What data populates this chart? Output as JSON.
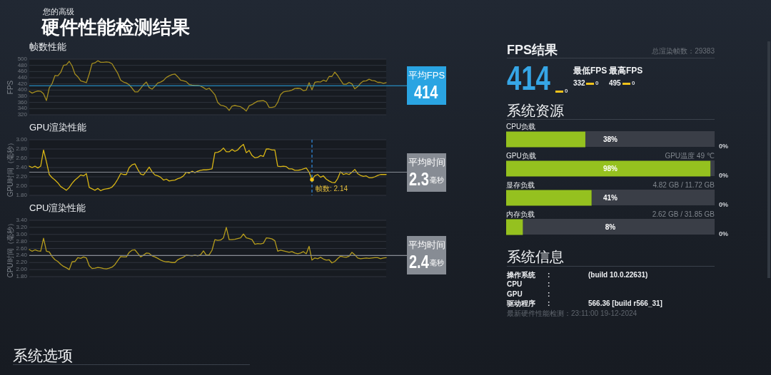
{
  "chart_data": [
    {
      "type": "other",
      "title": "硬件性能检测结果",
      "subtitle": "您的高级"
    },
    {
      "type": "line",
      "title": "帧数性能",
      "ylabel": "FPS",
      "color": "#a38c1f",
      "grid": "y",
      "ylim": [
        320,
        500
      ],
      "yticks": [
        320,
        340,
        360,
        380,
        400,
        420,
        440,
        460,
        480,
        500
      ],
      "categories": [
        null,
        null,
        null,
        null,
        null,
        null,
        null,
        null,
        null,
        null,
        null,
        null,
        null,
        null,
        null,
        null,
        null,
        null,
        null,
        null,
        null,
        null,
        null,
        null,
        null,
        null,
        null,
        null,
        null,
        null,
        null,
        null,
        null,
        null,
        null,
        null,
        null,
        null,
        null,
        null,
        null,
        null,
        null,
        null,
        null,
        null,
        null,
        null,
        null,
        null,
        null,
        null,
        null,
        null,
        null,
        null,
        null,
        null,
        null,
        null,
        null,
        null,
        null,
        null,
        null,
        null,
        null,
        null,
        null,
        null,
        null,
        null,
        null,
        null,
        null,
        null,
        null,
        null,
        null,
        null,
        null,
        null,
        null,
        null,
        null,
        null,
        null,
        null,
        null,
        null,
        null,
        null,
        null,
        null,
        null,
        null,
        null,
        null,
        null,
        null,
        null,
        null,
        null,
        null,
        null,
        null,
        null,
        null,
        null,
        null,
        null,
        null,
        null,
        null,
        null,
        null,
        null,
        null,
        null,
        null,
        null,
        null,
        null,
        null,
        null,
        null
      ],
      "values": [
        396,
        390,
        394,
        397,
        396,
        388,
        366,
        407,
        421,
        447,
        446,
        457,
        480,
        482,
        493,
        478,
        452,
        443,
        430,
        427,
        424,
        452,
        486,
        488,
        495,
        490,
        490,
        491,
        490,
        485,
        469,
        454,
        432,
        426,
        423,
        417,
        406,
        394,
        394,
        405,
        417,
        426,
        408,
        403,
        412,
        423,
        426,
        431,
        441,
        446,
        450,
        452,
        443,
        432,
        430,
        427,
        418,
        416,
        415,
        415,
        413,
        408,
        402,
        406,
        396,
        385,
        360,
        351,
        349,
        345,
        334,
        348,
        350,
        348,
        346,
        340,
        332,
        349,
        353,
        359,
        364,
        365,
        366,
        361,
        344,
        344,
        346,
        360,
        385,
        394,
        396,
        397,
        400,
        405,
        406,
        405,
        398,
        400,
        424,
        401,
        425,
        427,
        426,
        432,
        428,
        444,
        444,
        458,
        447,
        432,
        419,
        419,
        425,
        420,
        404,
        411,
        422,
        429,
        430,
        435,
        431,
        430,
        425,
        425,
        422,
        424
      ],
      "ref_lines": [
        {
          "axis": "y",
          "value": 414,
          "label": "平均FPS",
          "color": "#2aa4e2"
        }
      ],
      "annotations": [
        "414"
      ]
    },
    {
      "type": "line",
      "title": "GPU渲染性能",
      "ylabel": "GPU时间（毫秒）",
      "color": "#d9b615",
      "grid": "y",
      "ylim": [
        1.8,
        3.0
      ],
      "yticks": [
        {
          "value": 1.8,
          "label": "1.80"
        },
        {
          "value": 2,
          "label": "2.00"
        },
        {
          "value": 2.2,
          "label": "2.20"
        },
        {
          "value": 2.4,
          "label": "2.40"
        },
        {
          "value": 2.6,
          "label": "2.60"
        },
        {
          "value": 2.8,
          "label": "2.80"
        },
        {
          "value": 3,
          "label": "3.00"
        }
      ],
      "categories": [
        null,
        null,
        null,
        null,
        null,
        null,
        null,
        null,
        null,
        null,
        null,
        null,
        null,
        null,
        null,
        null,
        null,
        null,
        null,
        null,
        null,
        null,
        null,
        null,
        null,
        null,
        null,
        null,
        null,
        null,
        null,
        null,
        null,
        null,
        null,
        null,
        null,
        null,
        null,
        null,
        null,
        null,
        null,
        null,
        null,
        null,
        null,
        null,
        null,
        null,
        null,
        null,
        null,
        null,
        null,
        null,
        null,
        null,
        null,
        null,
        null,
        null,
        null,
        null,
        null,
        null,
        null,
        null,
        null,
        null,
        null,
        null,
        null,
        null,
        null,
        null,
        null,
        null,
        null,
        null,
        null,
        null,
        null,
        null,
        null,
        null,
        null,
        null,
        null,
        null,
        null,
        null,
        null,
        null,
        null,
        null,
        null,
        null,
        null,
        null,
        null,
        null,
        null,
        null,
        null,
        null,
        null,
        null,
        null,
        null,
        null,
        null,
        null,
        null,
        null,
        null,
        null,
        null,
        null,
        null,
        null,
        null,
        null,
        null,
        null,
        null
      ],
      "values": [
        2.43,
        2.4,
        2.43,
        2.39,
        2.43,
        2.78,
        2.53,
        2.25,
        2.18,
        2.13,
        2.07,
        1.99,
        1.95,
        1.91,
        1.97,
        2.06,
        2.13,
        2.18,
        2.24,
        2.22,
        2.27,
        1.97,
        1.94,
        1.91,
        1.95,
        1.9,
        1.93,
        1.94,
        1.95,
        1.98,
        2.05,
        2.15,
        2.27,
        2.25,
        2.25,
        2.4,
        2.46,
        2.48,
        2.36,
        2.26,
        2.24,
        2.32,
        2.41,
        2.31,
        2.24,
        2.22,
        2.19,
        2.13,
        2.15,
        2.11,
        2.12,
        2.13,
        2.16,
        2.18,
        2.22,
        2.3,
        2.28,
        2.32,
        2.29,
        2.32,
        2.34,
        2.35,
        2.35,
        2.36,
        2.37,
        2.72,
        2.73,
        2.76,
        2.82,
        2.74,
        2.74,
        2.79,
        2.75,
        2.78,
        2.85,
        2.9,
        2.72,
        2.77,
        2.66,
        2.61,
        2.62,
        2.66,
        2.64,
        2.8,
        2.8,
        2.78,
        2.78,
        2.43,
        2.42,
        2.43,
        2.42,
        2.37,
        2.37,
        2.34,
        2.34,
        2.35,
        2.37,
        2.39,
        2.3,
        2.14,
        2.22,
        2.25,
        2.19,
        2.22,
        2.15,
        2.11,
        2.08,
        2.07,
        2.16,
        2.31,
        2.25,
        2.27,
        2.25,
        2.3,
        2.36,
        2.27,
        2.23,
        2.21,
        2.22,
        2.18,
        2.18,
        2.2,
        2.23,
        2.25,
        2.25,
        2.25
      ],
      "ref_lines": [
        {
          "axis": "y",
          "value": 2.3,
          "label": "平均时间",
          "color": "#878c94"
        }
      ],
      "annotations": [
        {
          "text": "帧数: 2.14",
          "y": 2.14
        },
        "2.3",
        "毫秒"
      ]
    },
    {
      "type": "line",
      "title": "CPU渲染性能",
      "ylabel": "CPU时间（毫秒）",
      "color": "#b59c1d",
      "grid": "y",
      "ylim": [
        1.8,
        3.4
      ],
      "yticks": [
        {
          "value": 1.8,
          "label": "1.80"
        },
        {
          "value": 2,
          "label": "2.00"
        },
        {
          "value": 2.2,
          "label": "2.20"
        },
        {
          "value": 2.4,
          "label": "2.40"
        },
        {
          "value": 2.6,
          "label": "2.60"
        },
        {
          "value": 2.8,
          "label": "2.80"
        },
        {
          "value": 3,
          "label": "3.00"
        },
        {
          "value": 3.2,
          "label": "3.20"
        },
        {
          "value": 3.4,
          "label": "3.40"
        }
      ],
      "categories": [
        null,
        null,
        null,
        null,
        null,
        null,
        null,
        null,
        null,
        null,
        null,
        null,
        null,
        null,
        null,
        null,
        null,
        null,
        null,
        null,
        null,
        null,
        null,
        null,
        null,
        null,
        null,
        null,
        null,
        null,
        null,
        null,
        null,
        null,
        null,
        null,
        null,
        null,
        null,
        null,
        null,
        null,
        null,
        null,
        null,
        null,
        null,
        null,
        null,
        null,
        null,
        null,
        null,
        null,
        null,
        null,
        null,
        null,
        null,
        null,
        null,
        null,
        null,
        null,
        null,
        null,
        null,
        null,
        null,
        null,
        null,
        null,
        null,
        null,
        null,
        null,
        null,
        null,
        null,
        null,
        null,
        null,
        null,
        null,
        null,
        null,
        null,
        null,
        null,
        null,
        null,
        null,
        null,
        null,
        null,
        null,
        null,
        null,
        null,
        null,
        null,
        null,
        null,
        null,
        null,
        null,
        null,
        null,
        null,
        null,
        null,
        null,
        null,
        null,
        null,
        null,
        null,
        null,
        null,
        null,
        null,
        null,
        null,
        null,
        null,
        null
      ],
      "values": [
        2.57,
        2.52,
        2.56,
        2.53,
        2.52,
        2.89,
        2.52,
        2.5,
        2.37,
        2.28,
        2.23,
        2.15,
        2.09,
        2.05,
        2.0,
        2.22,
        2.23,
        2.34,
        2.32,
        2.36,
        2.33,
        2.11,
        2.03,
        2.04,
        2.06,
        2.05,
        2.03,
        2.02,
        2.04,
        2.07,
        2.14,
        2.26,
        2.37,
        2.36,
        2.36,
        2.49,
        2.55,
        2.56,
        2.46,
        2.36,
        2.41,
        2.47,
        2.46,
        2.39,
        2.36,
        2.32,
        2.27,
        2.24,
        2.22,
        2.22,
        2.2,
        2.2,
        2.28,
        2.32,
        2.35,
        2.41,
        2.4,
        2.39,
        2.41,
        2.39,
        2.42,
        2.53,
        2.41,
        2.42,
        2.55,
        2.85,
        2.83,
        2.84,
        2.9,
        3.2,
        2.85,
        2.85,
        2.86,
        2.88,
        2.9,
        3.01,
        2.9,
        2.88,
        2.85,
        2.72,
        2.74,
        2.73,
        2.75,
        2.9,
        2.89,
        2.87,
        2.82,
        2.52,
        2.55,
        2.53,
        2.51,
        2.49,
        2.51,
        2.47,
        2.45,
        2.47,
        2.51,
        2.45,
        2.66,
        2.27,
        2.33,
        2.31,
        2.35,
        2.3,
        2.27,
        2.28,
        2.19,
        2.23,
        2.31,
        2.38,
        2.36,
        2.35,
        2.38,
        2.49,
        2.42,
        2.33,
        2.31,
        2.32,
        2.33,
        2.32,
        2.33,
        2.34,
        2.34,
        2.31,
        2.33,
        2.34
      ],
      "ref_lines": [
        {
          "axis": "y",
          "value": 2.4,
          "label": "平均时间",
          "color": "#878c94"
        }
      ],
      "annotations": [
        "2.4",
        "毫秒"
      ]
    },
    {
      "type": "other",
      "title": "系统选项"
    },
    {
      "type": "other",
      "title": "FPS结果",
      "annotations": [
        "总渲染帧数：29383",
        "414",
        "0",
        "最低FPS",
        "最高FPS",
        "332",
        "0",
        "495",
        "0"
      ]
    },
    {
      "type": "bar",
      "title": "系统资源",
      "orientation": "horizontal",
      "categories": [
        "CPU负载",
        "GPU负载",
        "显存负载",
        "内存负载"
      ],
      "values": [
        38,
        98,
        41,
        8
      ],
      "value_labels": [
        "38%",
        "98%",
        "41%",
        "8%"
      ],
      "color": "#95c11f",
      "xlim": [
        0,
        100
      ],
      "annotations": [
        "0%",
        "GPU温度 49 ℃",
        "0%",
        "4.82 GB / 11.72 GB",
        "0%",
        "2.62 GB / 31.85 GB",
        "0%"
      ]
    },
    {
      "type": "other",
      "title": "系统信息",
      "annotations": [
        "操作系统\t:\t(build 10.0.22631)",
        "CPU\t:",
        "GPU\t:",
        "驱动程序\t:\t566.36 [build r566_31]",
        "最新硬件性能检测：23:11:00 19-12-2024"
      ]
    }
  ]
}
